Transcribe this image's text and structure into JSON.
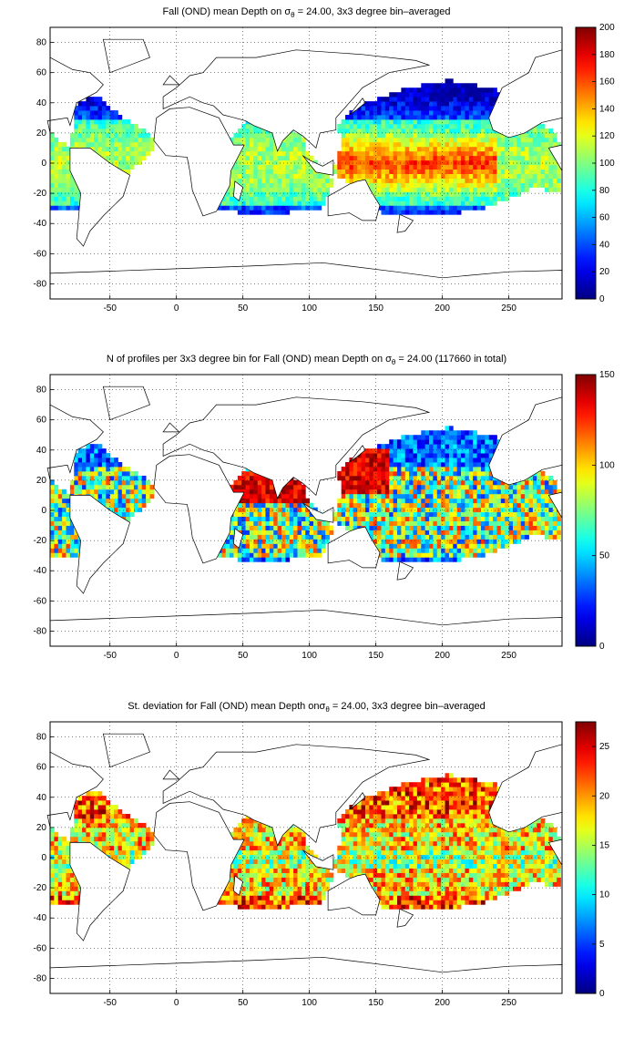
{
  "panels": [
    {
      "title_pre": "Fall (OND) mean Depth on ",
      "sigma": "σ",
      "sub": "θ",
      "title_post": " = 24.00, 3x3 degree bin–averaged",
      "colorbar": {
        "min": 0,
        "max": 200,
        "ticks": [
          "0",
          "20",
          "40",
          "60",
          "80",
          "100",
          "120",
          "140",
          "160",
          "180",
          "200"
        ]
      }
    },
    {
      "title_pre": "N of profiles per 3x3 degree bin for Fall (OND) mean Depth on ",
      "sigma": "σ",
      "sub": "θ",
      "title_post": " = 24.00 (117660 in total)",
      "colorbar": {
        "min": 0,
        "max": 150,
        "ticks": [
          "0",
          "50",
          "100",
          "150"
        ]
      }
    },
    {
      "title_pre": "St. deviation for Fall (OND) mean Depth on",
      "sigma": "σ",
      "sub": "θ",
      "title_post": " = 24.00, 3x3 degree bin–averaged",
      "colorbar": {
        "min": 0,
        "max": 27.5,
        "ticks": [
          "0",
          "5",
          "10",
          "15",
          "20",
          "25"
        ]
      }
    }
  ],
  "map": {
    "x_range": [
      -95,
      290
    ],
    "y_range": [
      -90,
      90
    ],
    "x_ticks": [
      "-50",
      "0",
      "50",
      "100",
      "150",
      "200",
      "250"
    ],
    "y_ticks": [
      "80",
      "60",
      "40",
      "20",
      "0",
      "-20",
      "-40",
      "-60",
      "-80"
    ]
  }
}
